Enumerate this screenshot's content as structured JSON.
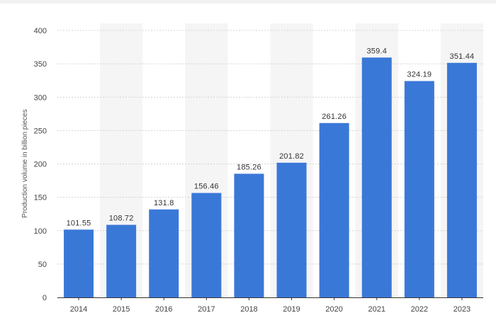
{
  "chart_data": {
    "type": "bar",
    "title": "",
    "xlabel": "",
    "ylabel": "Production volume in billion pieces",
    "categories": [
      "2014",
      "2015",
      "2016",
      "2017",
      "2018",
      "2019",
      "2020",
      "2021",
      "2022",
      "2023"
    ],
    "values": [
      101.55,
      108.72,
      131.8,
      156.46,
      185.26,
      201.82,
      261.26,
      359.4,
      324.19,
      351.44
    ],
    "value_labels": [
      "101.55",
      "108.72",
      "131.8",
      "156.46",
      "185.26",
      "201.82",
      "261.26",
      "359.4",
      "324.19",
      "351.44"
    ],
    "ylim": [
      0,
      400
    ],
    "yticks": [
      0,
      50,
      100,
      150,
      200,
      250,
      300,
      350,
      400
    ],
    "grid": true,
    "grid_style": "dotted",
    "alternating_column_shading": true,
    "legend": "none",
    "colors": {
      "bar": "#3a78d8",
      "grid": "#d4d4d4",
      "shade": "#f5f5f5",
      "axis": "#333333",
      "text": "#444444"
    }
  }
}
